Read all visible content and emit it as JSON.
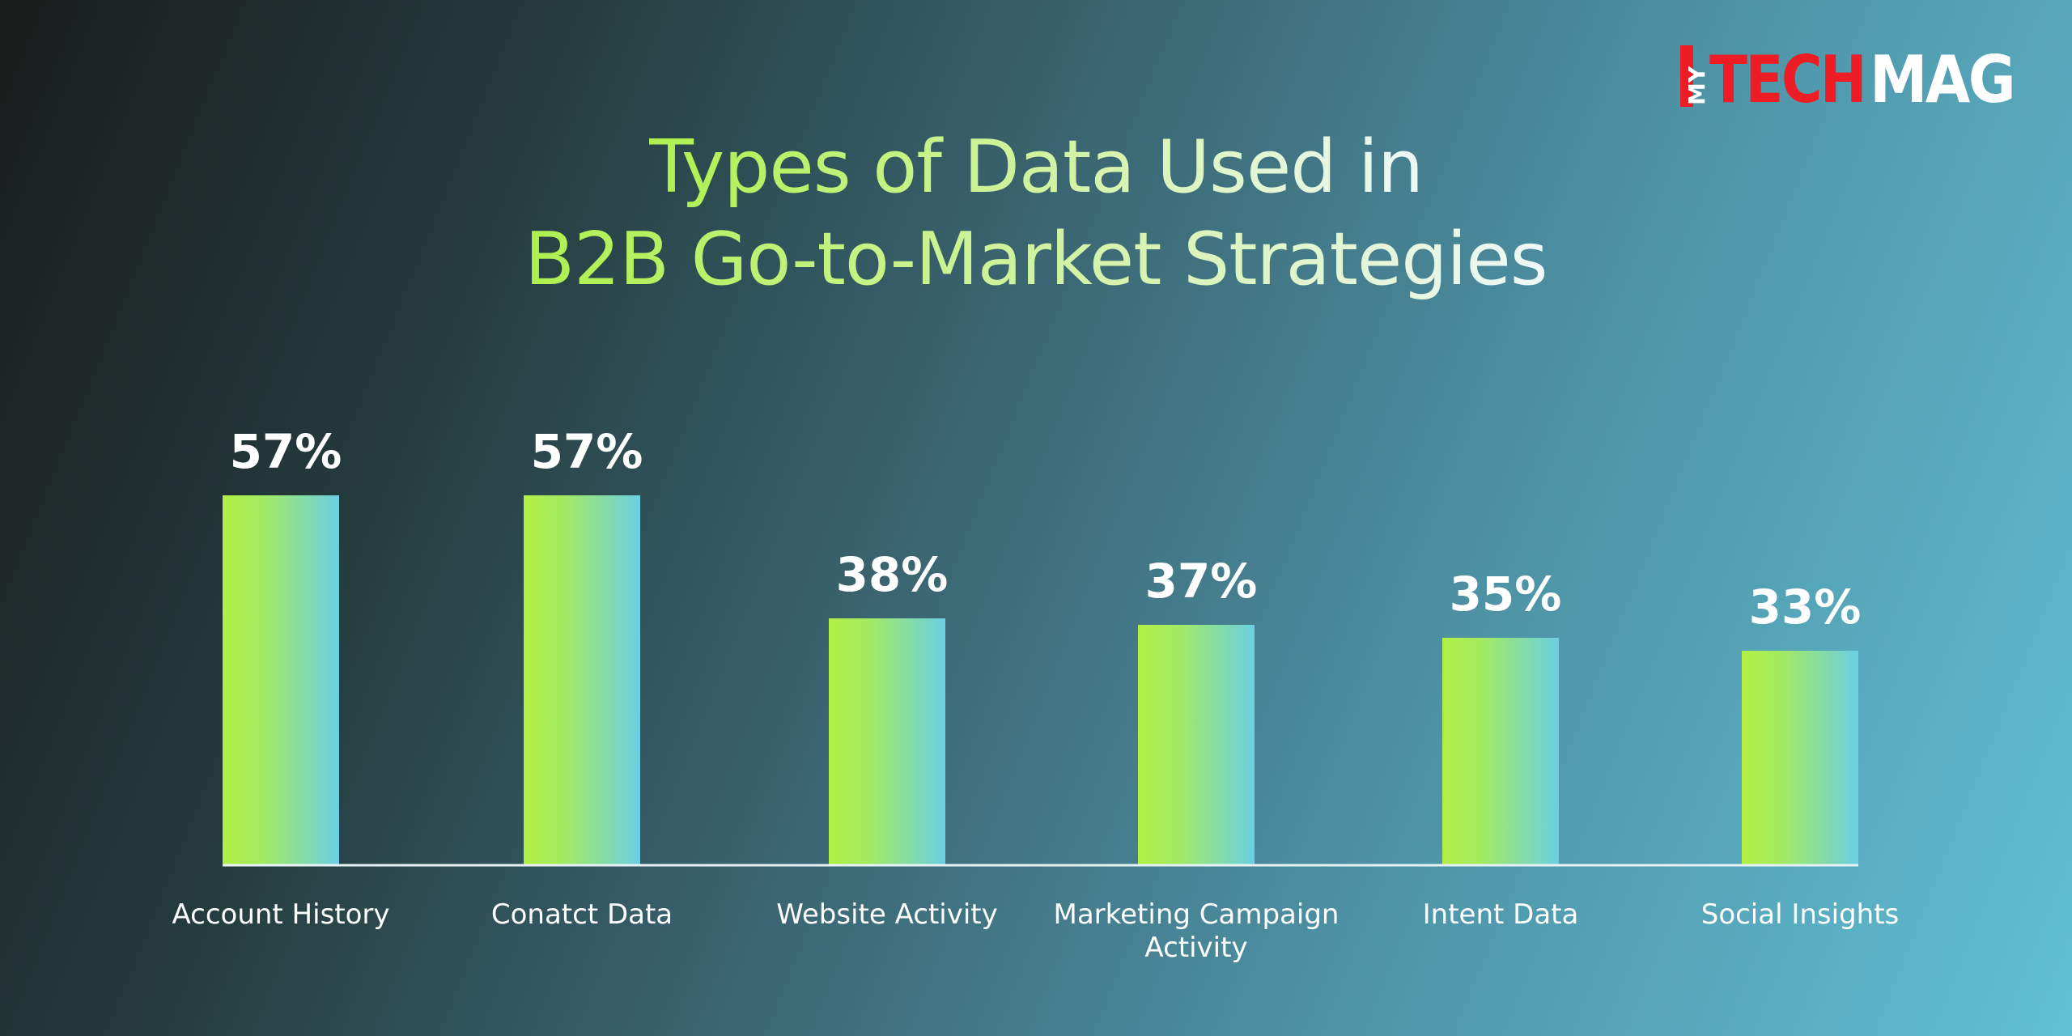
{
  "logo": {
    "my": "MY",
    "tech": "TECH",
    "mag": "MAG"
  },
  "chart_data": {
    "type": "bar",
    "title": "Types of Data Used in\nB2B Go-to-Market Strategies",
    "title_lines": [
      "Types of Data Used in",
      "B2B Go-to-Market Strategies"
    ],
    "categories": [
      "Account History",
      "Conatct Data",
      "Website Activity",
      "Marketing Campaign Activity",
      "Intent Data",
      "Social Insights"
    ],
    "category_lines": [
      [
        "Account History"
      ],
      [
        "Conatct Data"
      ],
      [
        "Website Activity"
      ],
      [
        "Marketing Campaign",
        "Activity"
      ],
      [
        "Intent Data"
      ],
      [
        "Social Insights"
      ]
    ],
    "values": [
      57,
      57,
      38,
      37,
      35,
      33
    ],
    "value_labels": [
      "57%",
      "57%",
      "38%",
      "37%",
      "35%",
      "33%"
    ],
    "unit": "%",
    "ylim": [
      0,
      57
    ],
    "grid": false,
    "legend": "none",
    "colors": {
      "bar_start": "#b2ef45",
      "bar_end": "#6bcfe3",
      "baseline": "#e6f2f5",
      "value_label": "#ffffff",
      "category_label": "#ffffff",
      "logo_red": "#ee1c25",
      "logo_white": "#ffffff"
    }
  }
}
